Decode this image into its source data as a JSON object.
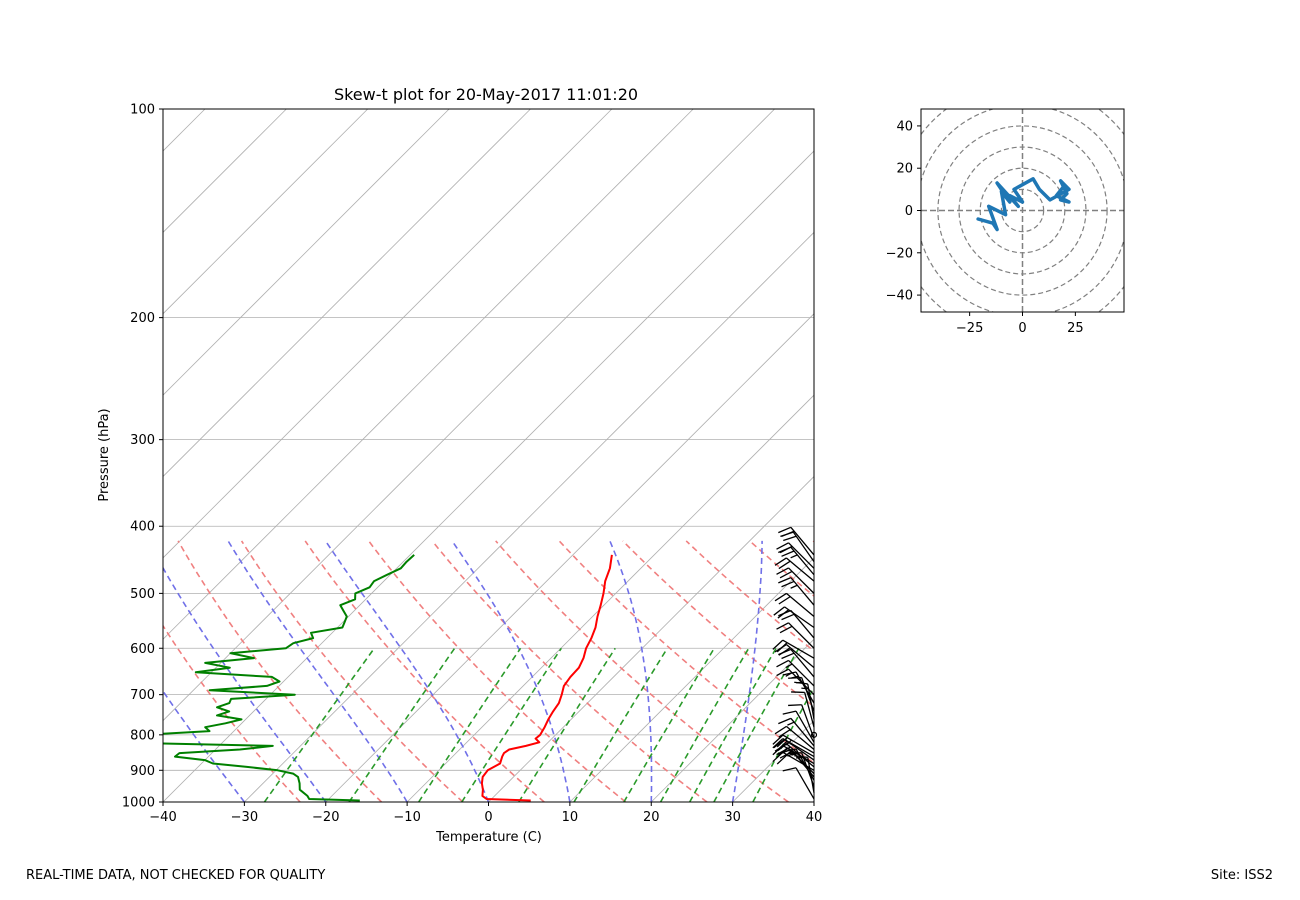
{
  "footer": {
    "left": "REAL-TIME DATA, NOT CHECKED FOR QUALITY",
    "right": "Site: ISS2"
  },
  "chart_data": [
    {
      "type": "line",
      "subtype": "skew-t",
      "title": "Skew-t plot for 20-May-2017 11:01:20",
      "xlabel": "Temperature (C)",
      "ylabel": "Pressure (hPa)",
      "xlim": [
        -40,
        40
      ],
      "ylim": [
        1000,
        100
      ],
      "yscale": "log",
      "xticks": [
        -40,
        -30,
        -20,
        -10,
        0,
        10,
        20,
        30,
        40
      ],
      "xtick_labels": [
        "−40",
        "−30",
        "−20",
        "−10",
        "0",
        "10",
        "20",
        "30",
        "40"
      ],
      "yticks": [
        100,
        200,
        300,
        400,
        500,
        600,
        700,
        800,
        900,
        1000
      ],
      "ytick_labels": [
        "100",
        "200",
        "300",
        "400",
        "500",
        "600",
        "700",
        "800",
        "900",
        "1000"
      ],
      "grid": true,
      "line_colors": {
        "temperature": "#ff0000",
        "dewpoint": "#008000",
        "isotherm": "#b0b0b0",
        "dry_adiabat": "#f08080",
        "moist_adiabat": "#7070e8",
        "mixing_ratio": "#2a9a2a",
        "barbs": "#000000"
      },
      "series": [
        {
          "pressure": [
            440,
            460,
            480,
            500,
            520,
            540,
            560,
            580,
            600,
            620,
            640,
            660,
            680,
            700,
            720,
            740,
            760,
            780,
            800,
            810,
            820,
            830,
            840,
            850,
            860,
            880,
            900,
            920,
            940,
            960,
            980,
            990,
            995
          ],
          "values": [
            -15.2,
            -13.8,
            -12.8,
            -11.5,
            -10.4,
            -9.4,
            -8.3,
            -7.5,
            -6.9,
            -6.0,
            -5.4,
            -5.3,
            -5.0,
            -4.2,
            -3.5,
            -3.2,
            -2.8,
            -2.3,
            -1.9,
            -2.0,
            -1.1,
            -2.3,
            -3.9,
            -4.1,
            -3.9,
            -3.3,
            -4.0,
            -3.8,
            -3.1,
            -2.2,
            -1.5,
            -0.6,
            5.0
          ]
        },
        {
          "pressure": [
            440,
            450,
            460,
            470,
            480,
            490,
            500,
            510,
            520,
            530,
            540,
            550,
            560,
            570,
            580,
            590,
            600,
            610,
            620,
            630,
            640,
            650,
            660,
            670,
            680,
            690,
            700,
            710,
            720,
            730,
            740,
            750,
            760,
            770,
            780,
            790,
            800,
            810,
            820,
            830,
            840,
            850,
            860,
            870,
            880,
            890,
            900,
            910,
            920,
            940,
            960,
            980,
            990,
            995
          ],
          "values": [
            -39.5,
            -39.6,
            -39.5,
            -40.4,
            -41.2,
            -41.0,
            -42.0,
            -41.3,
            -42.4,
            -41.3,
            -40.2,
            -39.8,
            -39.4,
            -42.6,
            -41.7,
            -43.5,
            -43.8,
            -50.0,
            -46.5,
            -51.9,
            -48.3,
            -51.9,
            -42.0,
            -40.5,
            -41.5,
            -48.0,
            -37.0,
            -44.3,
            -44.0,
            -45.0,
            -43.0,
            -44.0,
            -40.5,
            -42.0,
            -44.0,
            -43.0,
            -50.5,
            -49.7,
            -54.0,
            -33.4,
            -37.0,
            -44.0,
            -44.1,
            -40.0,
            -38.6,
            -34.0,
            -29.8,
            -27.5,
            -26.5,
            -25.5,
            -24.7,
            -23.0,
            -22.4,
            -16.0
          ]
        }
      ],
      "annotations": {
        "isotherms": [
          -120,
          -110,
          -100,
          -90,
          -80,
          -70,
          -60,
          -50,
          -40,
          -30,
          -20,
          -10,
          0,
          10,
          20,
          30,
          40
        ],
        "dry_adiabat_thetas": [
          250,
          260,
          270,
          280,
          290,
          300,
          310,
          320,
          330,
          340,
          350,
          360
        ],
        "moist_adiabat_T0": [
          -30,
          -20,
          -10,
          0,
          10,
          20,
          30,
          40,
          50
        ],
        "mixing_ratios_gkg": [
          0.4,
          1,
          2,
          3,
          5,
          8,
          12,
          16,
          20,
          24,
          32
        ]
      },
      "wind_barbs": {
        "pressure": [
          440,
          450,
          460,
          470,
          480,
          500,
          520,
          540,
          560,
          580,
          600,
          620,
          640,
          660,
          680,
          700,
          720,
          740,
          760,
          780,
          800,
          810,
          820,
          830,
          840,
          850,
          860,
          870,
          880,
          890,
          900,
          910,
          920,
          930,
          950,
          970,
          990
        ],
        "direction": [
          320,
          325,
          315,
          320,
          310,
          315,
          320,
          310,
          305,
          320,
          315,
          300,
          310,
          320,
          315,
          315,
          330,
          340,
          350,
          345,
          350,
          340,
          330,
          320,
          310,
          300,
          300,
          305,
          300,
          310,
          300,
          315,
          320,
          330,
          340,
          350,
          330
        ],
        "speed_knots": [
          20,
          20,
          20,
          25,
          20,
          20,
          25,
          20,
          20,
          20,
          20,
          20,
          20,
          20,
          15,
          15,
          15,
          15,
          15,
          10,
          0,
          10,
          10,
          15,
          20,
          25,
          20,
          20,
          25,
          20,
          20,
          20,
          15,
          15,
          15,
          10,
          10
        ]
      }
    },
    {
      "type": "line",
      "subtype": "hodograph",
      "xlim": [
        -48,
        48
      ],
      "ylim": [
        -48,
        48
      ],
      "xticks": [
        -25,
        0,
        25
      ],
      "xtick_labels": [
        "−25",
        "0",
        "25"
      ],
      "yticks": [
        -40,
        -20,
        0,
        20,
        40
      ],
      "ytick_labels": [
        "−40",
        "−20",
        "0",
        "20",
        "40"
      ],
      "rings": [
        10,
        20,
        30,
        40,
        50,
        60
      ],
      "line_color": "#1f77b4",
      "series": [
        {
          "u": [
            -21,
            -14,
            -12,
            -16,
            -8,
            -10,
            -6,
            -12,
            -2,
            -6,
            0,
            -4,
            5,
            8,
            13,
            22,
            18,
            21,
            18,
            22,
            16,
            20
          ],
          "v": [
            -4,
            -6,
            -9,
            2,
            -2,
            9,
            4,
            13,
            2,
            7,
            4,
            10,
            15,
            10,
            5,
            10,
            14,
            8,
            5,
            4,
            7,
            12
          ]
        }
      ]
    }
  ]
}
